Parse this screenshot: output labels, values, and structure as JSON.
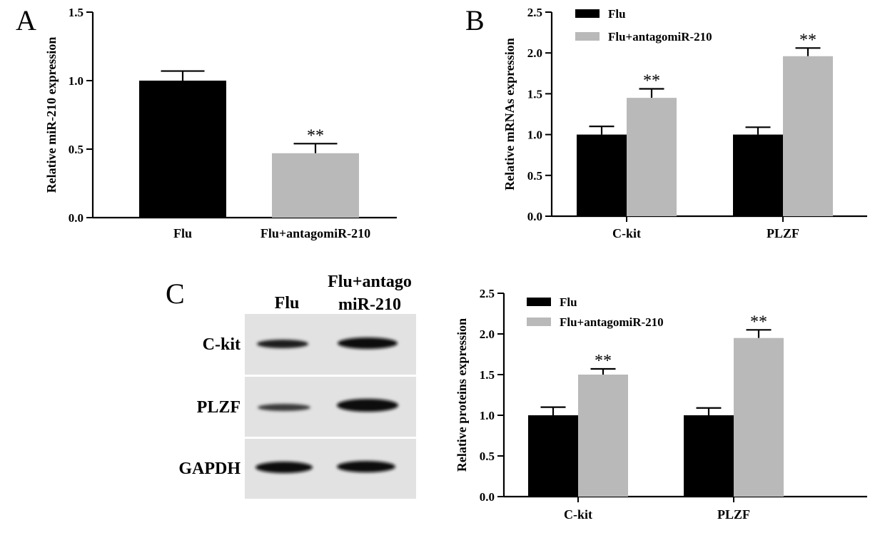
{
  "panels": {
    "a_label": "A",
    "b_label": "B",
    "c_label": "C"
  },
  "western_blot": {
    "columns": [
      "Flu",
      "Flu+antago",
      "miR-210"
    ],
    "rows": [
      {
        "label": "C-kit",
        "intensity": [
          0.75,
          0.9
        ]
      },
      {
        "label": "PLZF",
        "intensity": [
          0.45,
          0.95
        ]
      },
      {
        "label": "GAPDH",
        "intensity": [
          0.95,
          0.95
        ]
      }
    ]
  },
  "chart_data": [
    {
      "type": "bar",
      "panel": "A",
      "categories": [
        "Flu",
        "Flu+antagomiR-210"
      ],
      "values": [
        1.0,
        0.47
      ],
      "errors": [
        0.07,
        0.07
      ],
      "significance": [
        "",
        "**"
      ],
      "colors": [
        "#000000",
        "#b9b9b9"
      ],
      "ylabel": "Relative miR-210 expression",
      "ylim": [
        0,
        1.5
      ],
      "yticks": [
        "0.0",
        "0.5",
        "1.0",
        "1.5"
      ],
      "grid": false
    },
    {
      "type": "bar",
      "panel": "B",
      "categories": [
        "C-kit",
        "PLZF"
      ],
      "series": [
        {
          "name": "Flu",
          "values": [
            1.0,
            1.0
          ],
          "errors": [
            0.1,
            0.09
          ],
          "significance": [
            "",
            ""
          ],
          "color": "#000000"
        },
        {
          "name": "Flu+antagomiR-210",
          "values": [
            1.45,
            1.96
          ],
          "errors": [
            0.11,
            0.1
          ],
          "significance": [
            "**",
            "**"
          ],
          "color": "#b9b9b9"
        }
      ],
      "ylabel": "Relative mRNAs expression",
      "ylim": [
        0,
        2.5
      ],
      "yticks": [
        "0.0",
        "0.5",
        "1.0",
        "1.5",
        "2.0",
        "2.5"
      ],
      "legend": "top-left",
      "grid": false
    },
    {
      "type": "bar",
      "panel": "C",
      "categories": [
        "C-kit",
        "PLZF"
      ],
      "series": [
        {
          "name": "Flu",
          "values": [
            1.0,
            1.0
          ],
          "errors": [
            0.1,
            0.09
          ],
          "significance": [
            "",
            ""
          ],
          "color": "#000000"
        },
        {
          "name": "Flu+antagomiR-210",
          "values": [
            1.5,
            1.95
          ],
          "errors": [
            0.07,
            0.1
          ],
          "significance": [
            "**",
            "**"
          ],
          "color": "#b9b9b9"
        }
      ],
      "ylabel": "Relative proteins expression",
      "ylim": [
        0,
        2.5
      ],
      "yticks": [
        "0.0",
        "0.5",
        "1.0",
        "1.5",
        "2.0",
        "2.5"
      ],
      "legend": "top-left",
      "grid": false
    }
  ]
}
